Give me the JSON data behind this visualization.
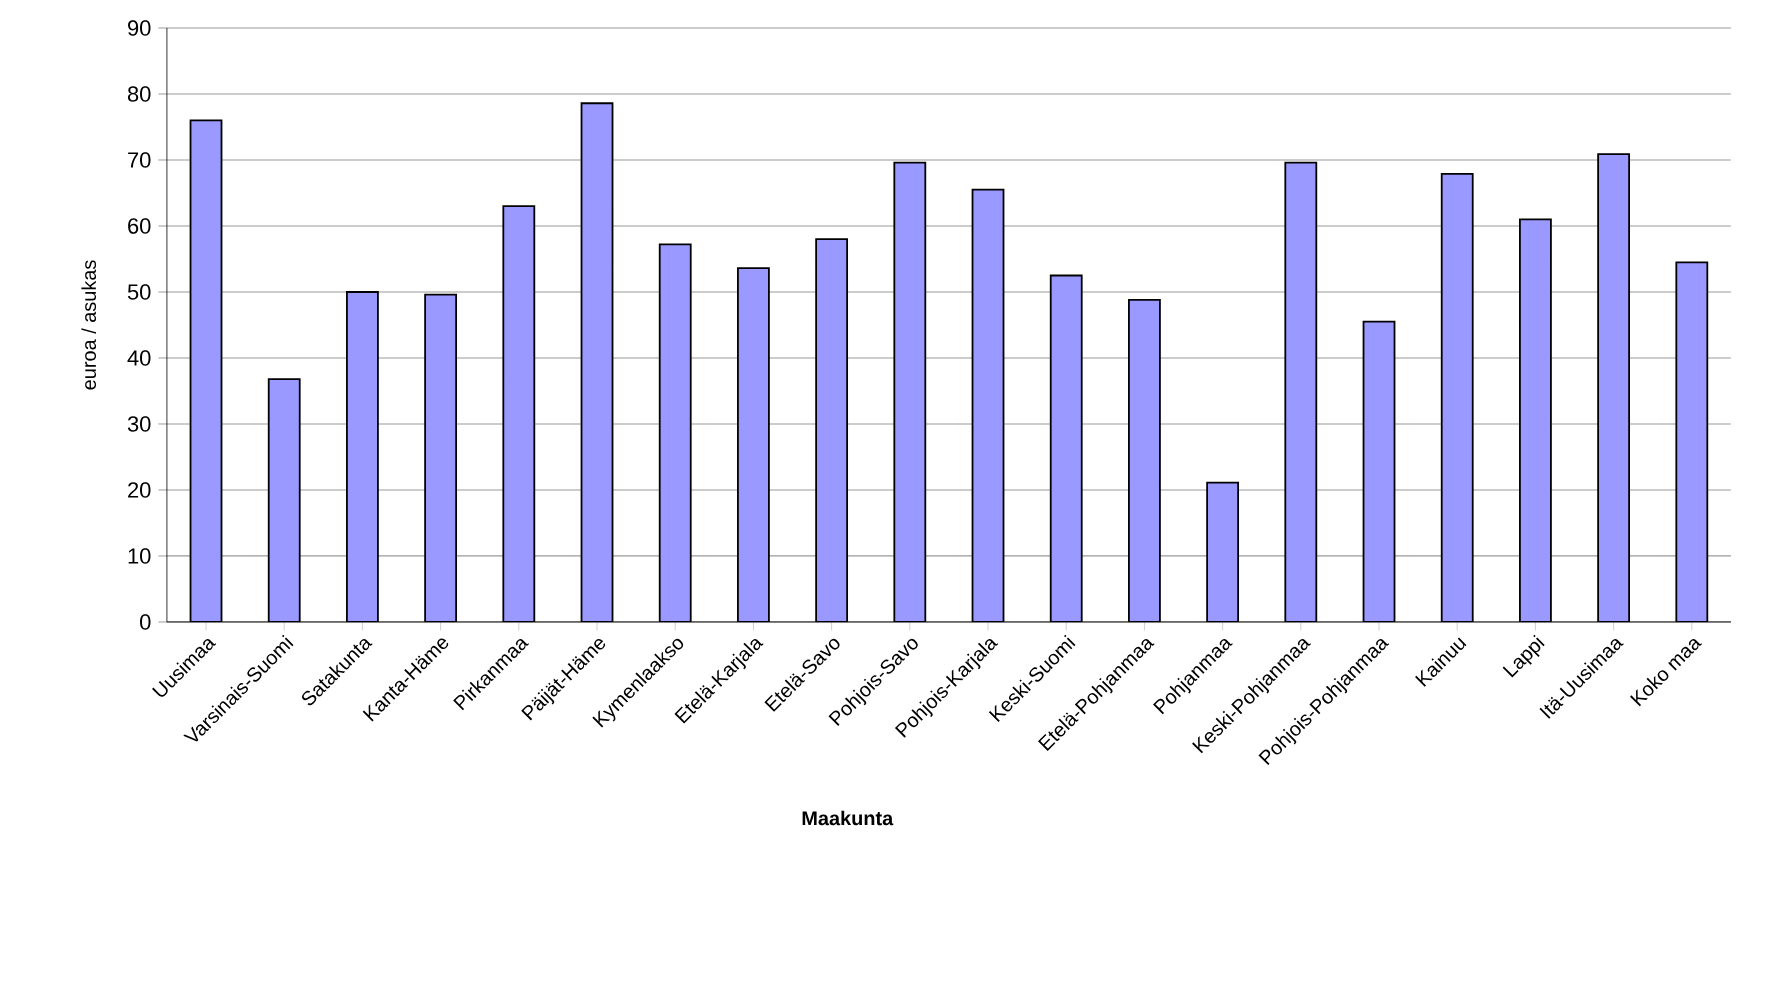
{
  "chart_data": {
    "type": "bar",
    "xlabel": "Maakunta",
    "ylabel": "euroa / asukas",
    "categories": [
      "Uusimaa",
      "Varsinais-Suomi",
      "Satakunta",
      "Kanta-Häme",
      "Pirkanmaa",
      "Päijät-Häme",
      "Kymenlaakso",
      "Etelä-Karjala",
      "Etelä-Savo",
      "Pohjois-Savo",
      "Pohjois-Karjala",
      "Keski-Suomi",
      "Etelä-Pohjanmaa",
      "Pohjanmaa",
      "Keski-Pohjanmaa",
      "Pohjois-Pohjanmaa",
      "Kainuu",
      "Lappi",
      "Itä-Uusimaa",
      "Koko maa"
    ],
    "values": [
      76,
      36.8,
      50,
      49.6,
      63,
      78.6,
      57.2,
      53.6,
      58,
      69.6,
      65.5,
      52.5,
      48.8,
      21.1,
      69.6,
      45.5,
      67.9,
      61,
      70.9,
      54.5
    ],
    "color": "#9999ff",
    "ylim": [
      0,
      90
    ],
    "yticks": [
      0,
      10,
      20,
      30,
      40,
      50,
      60,
      70,
      80,
      90
    ],
    "grid": "y"
  }
}
